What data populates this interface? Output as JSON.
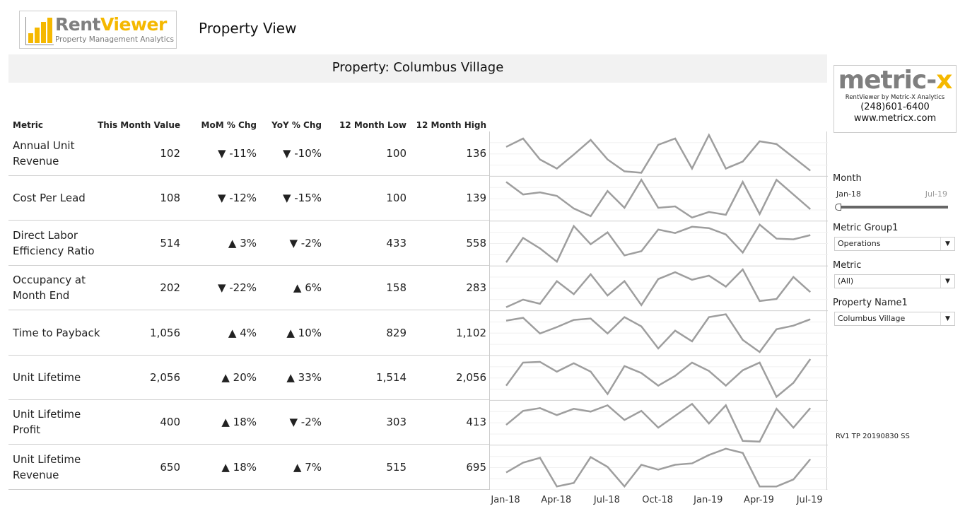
{
  "header": {
    "logo_brand_1": "Rent",
    "logo_brand_2": "Viewer",
    "logo_tagline": "Property Management Analytics",
    "title": "Property View"
  },
  "banner": "Property: Columbus Village",
  "table": {
    "columns": [
      "Metric",
      "This Month Value",
      "MoM % Chg",
      "YoY % Chg",
      "12 Month Low",
      "12 Month High"
    ],
    "rows": [
      {
        "metric": "Annual Unit Revenue",
        "value": "102",
        "mom": "▼ -11%",
        "yoy": "▼ -10%",
        "low": "100",
        "high": "136",
        "trend": [
          42,
          54,
          24,
          11,
          31,
          52,
          24,
          7,
          5,
          45,
          54,
          11,
          59,
          11,
          21,
          50,
          46,
          27,
          8
        ]
      },
      {
        "metric": "Cost Per Lead",
        "value": "108",
        "mom": "▼ -12%",
        "yoy": "▼ -15%",
        "low": "100",
        "high": "139",
        "trend": [
          56,
          38,
          41,
          36,
          18,
          7,
          43,
          19,
          59,
          19,
          21,
          5,
          13,
          9,
          56,
          10,
          59,
          38,
          17
        ]
      },
      {
        "metric": "Direct Labor Efficiency Ratio",
        "value": "514",
        "mom": "▲ 3%",
        "yoy": "▼ -2%",
        "low": "433",
        "high": "558",
        "trend": [
          4,
          39,
          24,
          5,
          56,
          30,
          47,
          14,
          20,
          51,
          46,
          55,
          53,
          44,
          18,
          58,
          38,
          37,
          43
        ]
      },
      {
        "metric": "Occupancy at Month End",
        "value": "202",
        "mom": "▼ -22%",
        "yoy": "▲ 6%",
        "low": "158",
        "high": "283",
        "trend": [
          4,
          15,
          9,
          42,
          23,
          52,
          21,
          42,
          7,
          45,
          55,
          44,
          50,
          34,
          59,
          13,
          16,
          48,
          26
        ]
      },
      {
        "metric": "Time to Payback",
        "value": "1,056",
        "mom": "▲ 4%",
        "yoy": "▲ 10%",
        "low": "829",
        "high": "1,102",
        "trend": [
          49,
          53,
          31,
          40,
          50,
          52,
          31,
          54,
          41,
          10,
          35,
          20,
          54,
          58,
          22,
          5,
          37,
          42,
          51
        ]
      },
      {
        "metric": "Unit Lifetime",
        "value": "2,056",
        "mom": "▲ 20%",
        "yoy": "▲ 33%",
        "low": "1,514",
        "high": "2,056",
        "trend": [
          21,
          54,
          55,
          41,
          53,
          41,
          9,
          49,
          39,
          21,
          35,
          54,
          42,
          21,
          43,
          54,
          5,
          25,
          59
        ]
      },
      {
        "metric": "Unit Lifetime Profit",
        "value": "400",
        "mom": "▲ 18%",
        "yoy": "▼ -2%",
        "low": "303",
        "high": "413",
        "trend": [
          28,
          48,
          52,
          42,
          51,
          47,
          56,
          35,
          48,
          24,
          41,
          58,
          30,
          56,
          5,
          4,
          51,
          24,
          52
        ]
      },
      {
        "metric": "Unit Lifetime Revenue",
        "value": "650",
        "mom": "▲ 18%",
        "yoy": "▲ 7%",
        "low": "515",
        "high": "695",
        "trend": [
          25,
          39,
          46,
          5,
          10,
          47,
          33,
          5,
          36,
          29,
          36,
          38,
          50,
          59,
          53,
          5,
          5,
          15,
          44
        ]
      }
    ],
    "axis_labels": [
      "Jan-18",
      "Apr-18",
      "Jul-18",
      "Oct-18",
      "Jan-19",
      "Apr-19",
      "Jul-19"
    ],
    "line_color": "#9e9e9e"
  },
  "sidebar": {
    "brand_1": "metric-",
    "brand_2": "x",
    "brand_tagline": "RentViewer by Metric-X Analytics",
    "phone": "(248)601-6400",
    "website": "www.metricx.com",
    "month_label": "Month",
    "month_start": "Jan-18",
    "month_end": "Jul-19",
    "group_label": "Metric Group1",
    "group_value": "Operations",
    "metric_label": "Metric",
    "metric_value": "(All)",
    "property_label": "Property Name1",
    "property_value": "Columbus Village",
    "version": "RV1 TP 20190830 SS"
  },
  "colors": {
    "accent": "#f5b800",
    "brand_gray": "#7f7f7f"
  }
}
